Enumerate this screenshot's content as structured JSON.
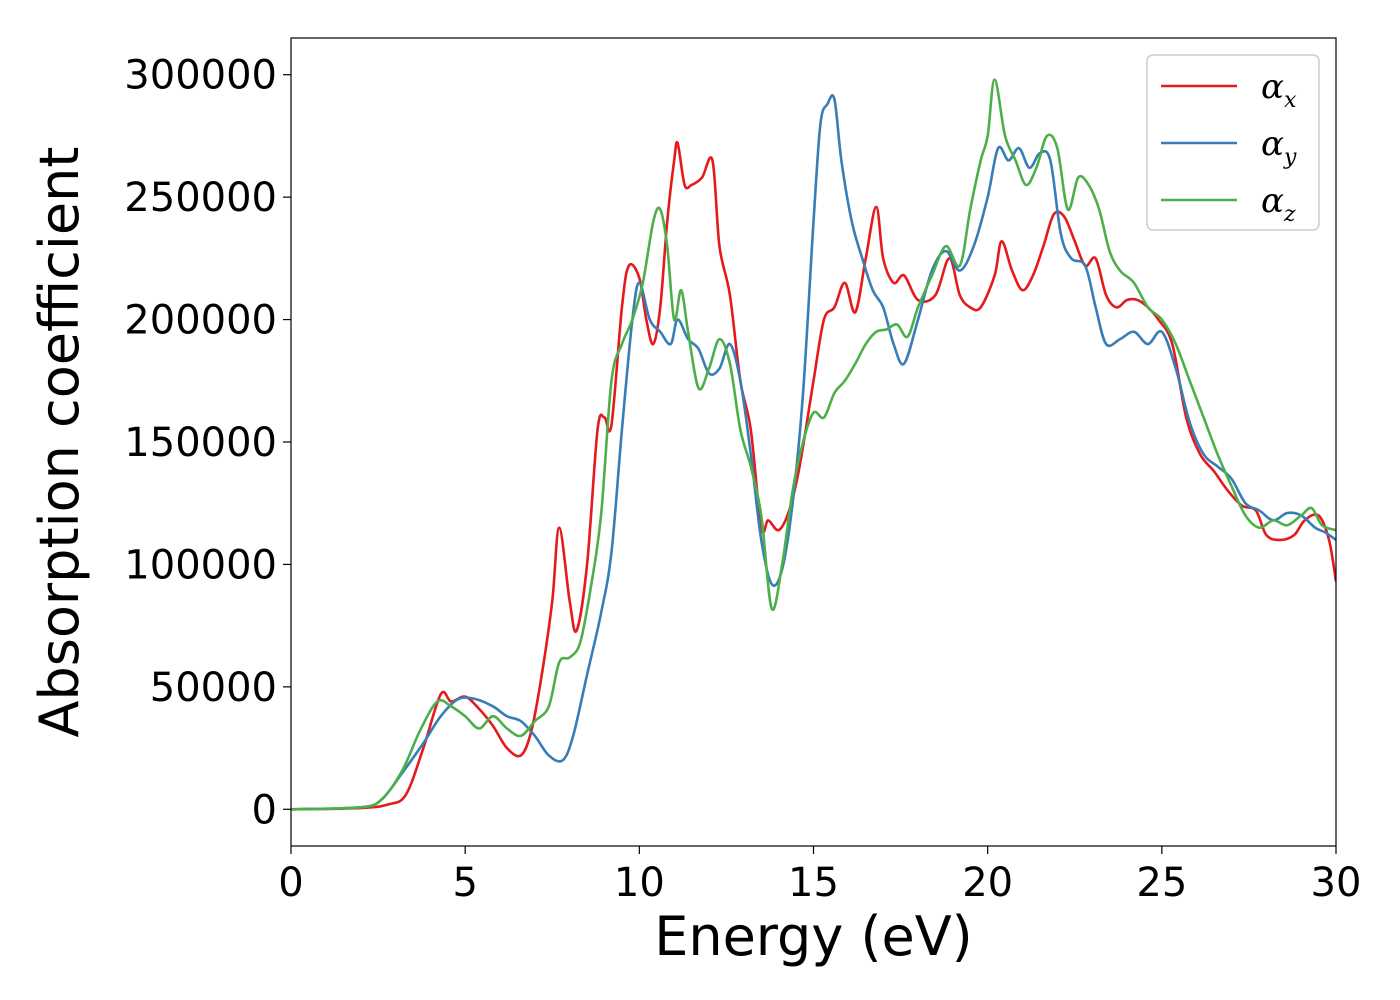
{
  "chart_data": {
    "type": "line",
    "xlabel": "Energy (eV)",
    "ylabel": "Absorption coefficient",
    "xlim": [
      0,
      30
    ],
    "ylim": [
      -15000,
      315000
    ],
    "xticks": [
      0,
      5,
      10,
      15,
      20,
      25,
      30
    ],
    "yticks": [
      0,
      50000,
      100000,
      150000,
      200000,
      250000,
      300000
    ],
    "grid": false,
    "legend_position": "top-right",
    "series": [
      {
        "name": "αx",
        "name_base": "α",
        "name_sub": "x",
        "color": "#e41a1c",
        "x": [
          0,
          2,
          2.8,
          3.3,
          3.8,
          4.3,
          4.6,
          5.0,
          5.4,
          5.8,
          6.2,
          6.6,
          6.9,
          7.2,
          7.5,
          7.7,
          8.0,
          8.2,
          8.5,
          8.8,
          9.0,
          9.2,
          9.5,
          9.7,
          10.0,
          10.2,
          10.4,
          10.6,
          10.8,
          11.0,
          11.1,
          11.3,
          11.5,
          11.8,
          12.1,
          12.3,
          12.6,
          12.9,
          13.2,
          13.5,
          13.7,
          14.0,
          14.3,
          14.6,
          15.0,
          15.3,
          15.6,
          15.9,
          16.2,
          16.5,
          16.8,
          17.0,
          17.3,
          17.6,
          18.0,
          18.5,
          18.9,
          19.2,
          19.5,
          19.8,
          20.2,
          20.4,
          20.7,
          21.0,
          21.3,
          21.6,
          21.9,
          22.2,
          22.5,
          22.8,
          23.1,
          23.4,
          23.7,
          24.0,
          24.3,
          24.6,
          24.9,
          25.3,
          25.7,
          26.1,
          26.5,
          26.9,
          27.3,
          27.7,
          28.0,
          28.4,
          28.8,
          29.1,
          29.5,
          29.8,
          30.0
        ],
        "y": [
          0,
          500,
          2000,
          6000,
          25000,
          47000,
          44000,
          46000,
          41000,
          34000,
          25000,
          22000,
          32000,
          55000,
          85000,
          115000,
          85000,
          73000,
          100000,
          155000,
          160000,
          157000,
          205000,
          222000,
          217000,
          200000,
          190000,
          205000,
          240000,
          265000,
          272000,
          255000,
          255000,
          258000,
          265000,
          230000,
          210000,
          175000,
          155000,
          115000,
          118000,
          114000,
          122000,
          140000,
          175000,
          200000,
          205000,
          215000,
          203000,
          225000,
          246000,
          225000,
          215000,
          218000,
          208000,
          210000,
          225000,
          210000,
          205000,
          205000,
          218000,
          232000,
          220000,
          212000,
          218000,
          230000,
          243000,
          242000,
          232000,
          222000,
          225000,
          210000,
          205000,
          208000,
          208000,
          205000,
          200000,
          190000,
          160000,
          145000,
          138000,
          130000,
          124000,
          122000,
          112000,
          110000,
          112000,
          118000,
          120000,
          110000,
          93000
        ]
      },
      {
        "name": "αy",
        "name_base": "α",
        "name_sub": "y",
        "color": "#377eb8",
        "x": [
          0,
          2,
          2.6,
          3.2,
          3.8,
          4.3,
          4.8,
          5.3,
          5.8,
          6.2,
          6.6,
          7.0,
          7.4,
          7.8,
          8.1,
          8.5,
          8.9,
          9.2,
          9.5,
          9.8,
          10.0,
          10.3,
          10.6,
          10.9,
          11.1,
          11.4,
          11.7,
          12.0,
          12.3,
          12.6,
          12.9,
          13.2,
          13.5,
          13.8,
          14.1,
          14.4,
          14.7,
          15.0,
          15.2,
          15.4,
          15.6,
          15.8,
          16.1,
          16.4,
          16.7,
          17.0,
          17.3,
          17.6,
          18.0,
          18.4,
          18.8,
          19.2,
          19.6,
          20.0,
          20.3,
          20.6,
          20.9,
          21.2,
          21.5,
          21.8,
          22.1,
          22.4,
          22.8,
          23.1,
          23.4,
          23.8,
          24.2,
          24.6,
          25.0,
          25.4,
          25.8,
          26.2,
          26.6,
          27.0,
          27.4,
          27.8,
          28.2,
          28.6,
          29.0,
          29.4,
          29.7,
          30.0
        ],
        "y": [
          0,
          800,
          4000,
          15000,
          27000,
          38000,
          45000,
          45000,
          42000,
          38000,
          36000,
          30000,
          22000,
          20000,
          30000,
          55000,
          80000,
          105000,
          155000,
          200000,
          215000,
          200000,
          195000,
          190000,
          200000,
          192000,
          188000,
          178000,
          180000,
          190000,
          175000,
          145000,
          110000,
          92000,
          98000,
          125000,
          170000,
          240000,
          280000,
          288000,
          290000,
          265000,
          240000,
          225000,
          212000,
          205000,
          190000,
          182000,
          200000,
          220000,
          228000,
          220000,
          230000,
          250000,
          270000,
          265000,
          270000,
          262000,
          268000,
          265000,
          235000,
          225000,
          222000,
          205000,
          190000,
          192000,
          195000,
          190000,
          195000,
          180000,
          158000,
          145000,
          140000,
          135000,
          125000,
          122000,
          118000,
          121000,
          120000,
          115000,
          113000,
          110000
        ]
      },
      {
        "name": "αz",
        "name_base": "α",
        "name_sub": "z",
        "color": "#4daf4a",
        "x": [
          0,
          2,
          2.6,
          3.2,
          3.7,
          4.2,
          4.6,
          5.0,
          5.4,
          5.8,
          6.2,
          6.6,
          7.0,
          7.4,
          7.7,
          8.0,
          8.3,
          8.6,
          8.9,
          9.2,
          9.5,
          9.8,
          10.1,
          10.4,
          10.6,
          10.8,
          11.0,
          11.2,
          11.4,
          11.7,
          12.0,
          12.3,
          12.6,
          12.9,
          13.2,
          13.5,
          13.8,
          14.1,
          14.4,
          14.7,
          15.0,
          15.3,
          15.6,
          15.9,
          16.2,
          16.5,
          16.8,
          17.1,
          17.4,
          17.7,
          18.0,
          18.4,
          18.8,
          19.2,
          19.5,
          19.8,
          20.0,
          20.2,
          20.5,
          20.8,
          21.1,
          21.4,
          21.7,
          22.0,
          22.3,
          22.6,
          22.9,
          23.2,
          23.5,
          23.8,
          24.2,
          24.6,
          25.0,
          25.4,
          25.8,
          26.2,
          26.6,
          27.0,
          27.4,
          27.8,
          28.2,
          28.6,
          29.0,
          29.3,
          29.6,
          30.0
        ],
        "y": [
          0,
          800,
          4000,
          16000,
          32000,
          44000,
          42000,
          38000,
          33000,
          38000,
          33000,
          30000,
          36000,
          42000,
          60000,
          62000,
          68000,
          90000,
          120000,
          175000,
          190000,
          200000,
          215000,
          240000,
          245000,
          230000,
          200000,
          212000,
          195000,
          172000,
          180000,
          192000,
          182000,
          155000,
          140000,
          120000,
          82000,
          100000,
          130000,
          150000,
          162000,
          160000,
          170000,
          175000,
          182000,
          190000,
          195000,
          196000,
          198000,
          193000,
          205000,
          218000,
          230000,
          222000,
          245000,
          265000,
          275000,
          298000,
          275000,
          265000,
          255000,
          262000,
          275000,
          270000,
          245000,
          258000,
          255000,
          245000,
          228000,
          220000,
          215000,
          205000,
          200000,
          190000,
          175000,
          160000,
          145000,
          132000,
          120000,
          115000,
          118000,
          116000,
          120000,
          123000,
          116000,
          114000
        ]
      }
    ]
  }
}
